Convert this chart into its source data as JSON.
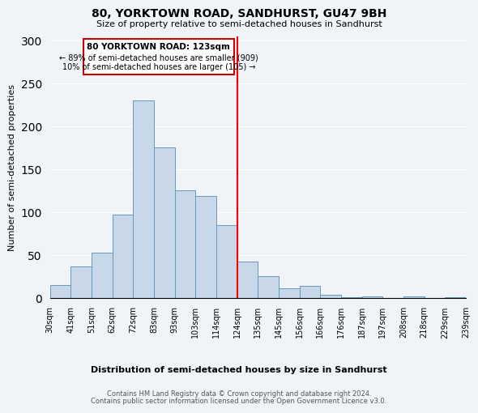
{
  "title": "80, YORKTOWN ROAD, SANDHURST, GU47 9BH",
  "subtitle": "Size of property relative to semi-detached houses in Sandhurst",
  "xlabel": "Distribution of semi-detached houses by size in Sandhurst",
  "ylabel": "Number of semi-detached properties",
  "bin_labels": [
    "30sqm",
    "41sqm",
    "51sqm",
    "62sqm",
    "72sqm",
    "83sqm",
    "93sqm",
    "103sqm",
    "114sqm",
    "124sqm",
    "135sqm",
    "145sqm",
    "156sqm",
    "166sqm",
    "176sqm",
    "187sqm",
    "197sqm",
    "208sqm",
    "218sqm",
    "229sqm",
    "239sqm"
  ],
  "bar_values": [
    15,
    37,
    53,
    97,
    230,
    175,
    125,
    119,
    85,
    42,
    25,
    11,
    14,
    4,
    1,
    2,
    0,
    2,
    0,
    1
  ],
  "bar_color": "#c8d8e8",
  "bar_edge_color": "#6699bb",
  "property_line_color": "red",
  "annotation_title": "80 YORKTOWN ROAD: 123sqm",
  "annotation_line1": "← 89% of semi-detached houses are smaller (909)",
  "annotation_line2": "10% of semi-detached houses are larger (105) →",
  "annotation_box_color": "#ffffff",
  "annotation_box_edge": "#cc0000",
  "ylim": [
    0,
    305
  ],
  "yticks": [
    0,
    50,
    100,
    150,
    200,
    250,
    300
  ],
  "footer_line1": "Contains HM Land Registry data © Crown copyright and database right 2024.",
  "footer_line2": "Contains public sector information licensed under the Open Government Licence v3.0.",
  "background_color": "#f0f4f8"
}
